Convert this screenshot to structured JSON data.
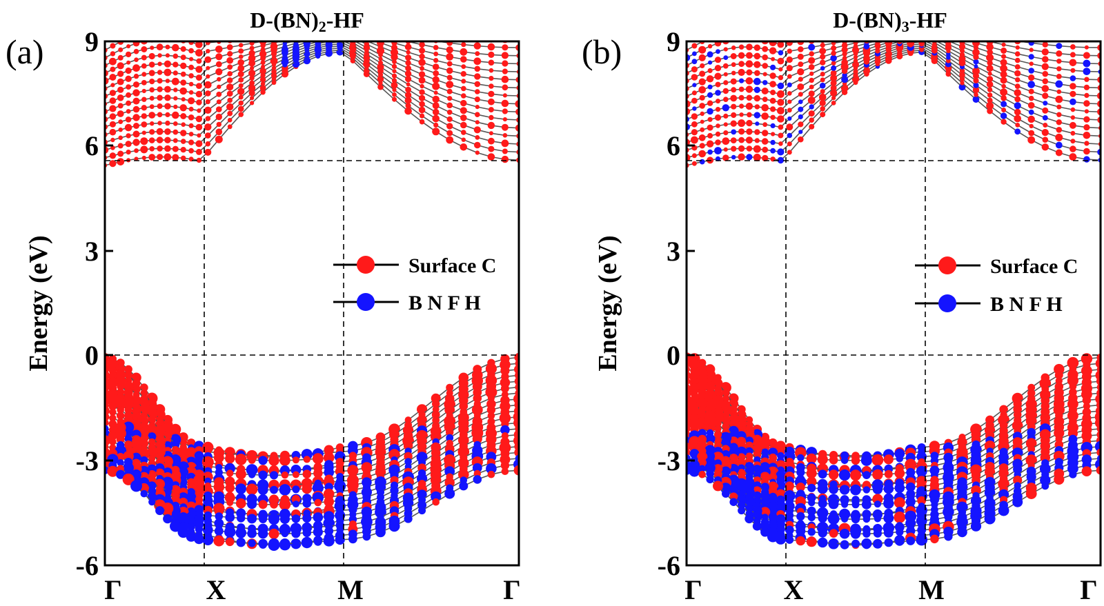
{
  "colors": {
    "surface_c": "#ff1a1a",
    "bnfh": "#1414ff",
    "band_line": "#555555",
    "axis": "#000000"
  },
  "chart_data": [
    {
      "type": "line",
      "panel_label": "(a)",
      "title_parts": [
        "D-(BN)",
        "2",
        "-HF"
      ],
      "ylabel": "Energy (eV)",
      "ylim": [
        -6,
        9
      ],
      "yticks": [
        "-6",
        "-3",
        "0",
        "3",
        "6",
        "9"
      ],
      "kpoint_labels": [
        "Γ",
        "X",
        "M",
        "Γ"
      ],
      "kpoint_positions": [
        0,
        1,
        2,
        3
      ],
      "fermi_level": 0,
      "cbm_level": 5.55,
      "legend": {
        "placement": "right",
        "entries": [
          "Surface C",
          "B N F H"
        ]
      },
      "series": [
        {
          "name": "Surface C"
        },
        {
          "name": "B N F H"
        }
      ]
    },
    {
      "type": "line",
      "panel_label": "(b)",
      "title_parts": [
        "D-(BN)",
        "3",
        "-HF"
      ],
      "ylabel": "Energy (eV)",
      "ylim": [
        -6,
        9
      ],
      "yticks": [
        "-6",
        "-3",
        "0",
        "3",
        "6",
        "9"
      ],
      "kpoint_labels": [
        "Γ",
        "X",
        "M",
        "Γ"
      ],
      "kpoint_positions": [
        0,
        1,
        2,
        3
      ],
      "fermi_level": 0,
      "cbm_level": 5.55,
      "legend": {
        "placement": "right",
        "entries": [
          "Surface C",
          "B N F H"
        ]
      },
      "series": [
        {
          "name": "Surface C"
        },
        {
          "name": "B N F H"
        }
      ]
    }
  ]
}
